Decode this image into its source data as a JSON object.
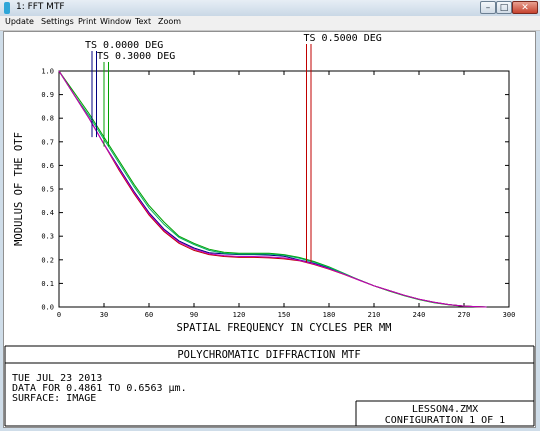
{
  "window": {
    "title": "1: FFT MTF",
    "minimize_label": "–",
    "maximize_label": "□",
    "close_label": "✕"
  },
  "menu": [
    "Update",
    "Settings",
    "Print",
    "Window",
    "Text",
    "Zoom"
  ],
  "footer": {
    "title": "POLYCHROMATIC DIFFRACTION MTF",
    "date": "TUE JUL 23 2013",
    "data_range": "DATA FOR 0.4861 TO 0.6563 μm.",
    "surface": "SURFACE: IMAGE",
    "file": "LESSON4.ZMX",
    "configuration": "CONFIGURATION 1 OF 1"
  },
  "chart_data": {
    "type": "line",
    "xlabel": "SPATIAL FREQUENCY IN CYCLES PER MM",
    "ylabel": "MODULUS OF THE OTF",
    "xlim": [
      0,
      300
    ],
    "ylim": [
      0,
      1
    ],
    "x_ticks": [
      "0",
      "30",
      "60",
      "90",
      "120",
      "150",
      "180",
      "210",
      "240",
      "270",
      "300"
    ],
    "y_ticks": [
      "0.0",
      "0.1",
      "0.2",
      "0.3",
      "0.4",
      "0.5",
      "0.6",
      "0.7",
      "0.8",
      "0.9",
      "1.0"
    ],
    "grid": false,
    "legend": [
      {
        "label": "TS 0.0000 DEG",
        "color": "#000080",
        "marker_x": [
          22,
          25
        ]
      },
      {
        "label": "TS 0.3000 DEG",
        "color": "#00a000",
        "marker_x": [
          30,
          33
        ]
      },
      {
        "label": "TS 0.5000 DEG",
        "color": "#c00000",
        "marker_x": [
          165,
          168
        ]
      }
    ],
    "x": [
      0,
      10,
      20,
      30,
      40,
      50,
      60,
      70,
      80,
      90,
      100,
      110,
      120,
      130,
      140,
      150,
      160,
      170,
      180,
      190,
      200,
      210,
      220,
      230,
      240,
      250,
      260,
      270,
      280,
      285
    ],
    "series": [
      {
        "color": "#000080",
        "values": [
          1.0,
          0.9,
          0.8,
          0.69,
          0.59,
          0.49,
          0.4,
          0.33,
          0.28,
          0.25,
          0.23,
          0.225,
          0.222,
          0.222,
          0.22,
          0.215,
          0.2,
          0.185,
          0.165,
          0.14,
          0.115,
          0.09,
          0.07,
          0.05,
          0.033,
          0.02,
          0.01,
          0.004,
          0.001,
          0.0
        ]
      },
      {
        "color": "#00a000",
        "values": [
          1.0,
          0.91,
          0.82,
          0.72,
          0.62,
          0.52,
          0.43,
          0.36,
          0.3,
          0.27,
          0.245,
          0.232,
          0.228,
          0.228,
          0.228,
          0.222,
          0.21,
          0.193,
          0.17,
          0.143,
          0.115,
          0.09,
          0.068,
          0.048,
          0.031,
          0.018,
          0.009,
          0.003,
          0.001,
          0.0
        ]
      },
      {
        "color": "#00b060",
        "values": [
          1.0,
          0.9,
          0.81,
          0.71,
          0.61,
          0.51,
          0.42,
          0.35,
          0.295,
          0.265,
          0.24,
          0.228,
          0.224,
          0.224,
          0.224,
          0.219,
          0.207,
          0.19,
          0.168,
          0.142,
          0.115,
          0.09,
          0.069,
          0.049,
          0.032,
          0.019,
          0.01,
          0.004,
          0.001,
          0.0
        ]
      },
      {
        "color": "#c00000",
        "values": [
          1.0,
          0.9,
          0.8,
          0.69,
          0.58,
          0.48,
          0.39,
          0.32,
          0.27,
          0.24,
          0.222,
          0.214,
          0.21,
          0.21,
          0.208,
          0.204,
          0.196,
          0.18,
          0.16,
          0.138,
          0.114,
          0.09,
          0.07,
          0.05,
          0.033,
          0.02,
          0.01,
          0.004,
          0.001,
          0.0
        ]
      },
      {
        "color": "#c000c0",
        "values": [
          1.0,
          0.9,
          0.8,
          0.69,
          0.585,
          0.485,
          0.395,
          0.325,
          0.275,
          0.245,
          0.226,
          0.218,
          0.214,
          0.214,
          0.212,
          0.208,
          0.198,
          0.182,
          0.162,
          0.139,
          0.114,
          0.09,
          0.07,
          0.05,
          0.033,
          0.02,
          0.01,
          0.004,
          0.001,
          0.0
        ]
      }
    ]
  }
}
